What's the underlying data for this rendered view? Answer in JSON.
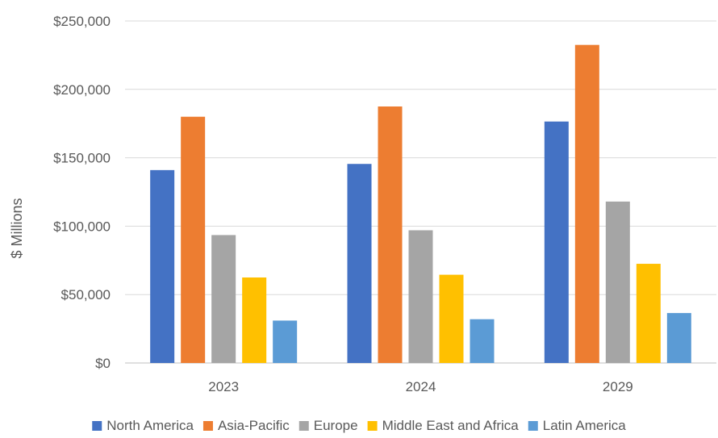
{
  "chart_data": {
    "type": "bar",
    "title": "",
    "xlabel": "",
    "ylabel": "$ Millions",
    "categories": [
      "2023",
      "2024",
      "2029"
    ],
    "ylim": [
      0,
      250000
    ],
    "yticks": [
      0,
      50000,
      100000,
      150000,
      200000,
      250000
    ],
    "ytick_labels": [
      "$0",
      "$50,000",
      "$100,000",
      "$150,000",
      "$200,000",
      "$250,000"
    ],
    "grid": true,
    "legend_position": "bottom",
    "series": [
      {
        "name": "North America",
        "color": "#4472C4",
        "values": [
          141000,
          145500,
          176500
        ]
      },
      {
        "name": "Asia-Pacific",
        "color": "#ED7D31",
        "values": [
          180000,
          187500,
          232500
        ]
      },
      {
        "name": "Europe",
        "color": "#A5A5A5",
        "values": [
          93500,
          97000,
          118000
        ]
      },
      {
        "name": "Middle East and Africa",
        "color": "#FFC000",
        "values": [
          62500,
          64500,
          72500
        ]
      },
      {
        "name": "Latin America",
        "color": "#5B9BD5",
        "values": [
          31000,
          32000,
          36500
        ]
      }
    ]
  }
}
